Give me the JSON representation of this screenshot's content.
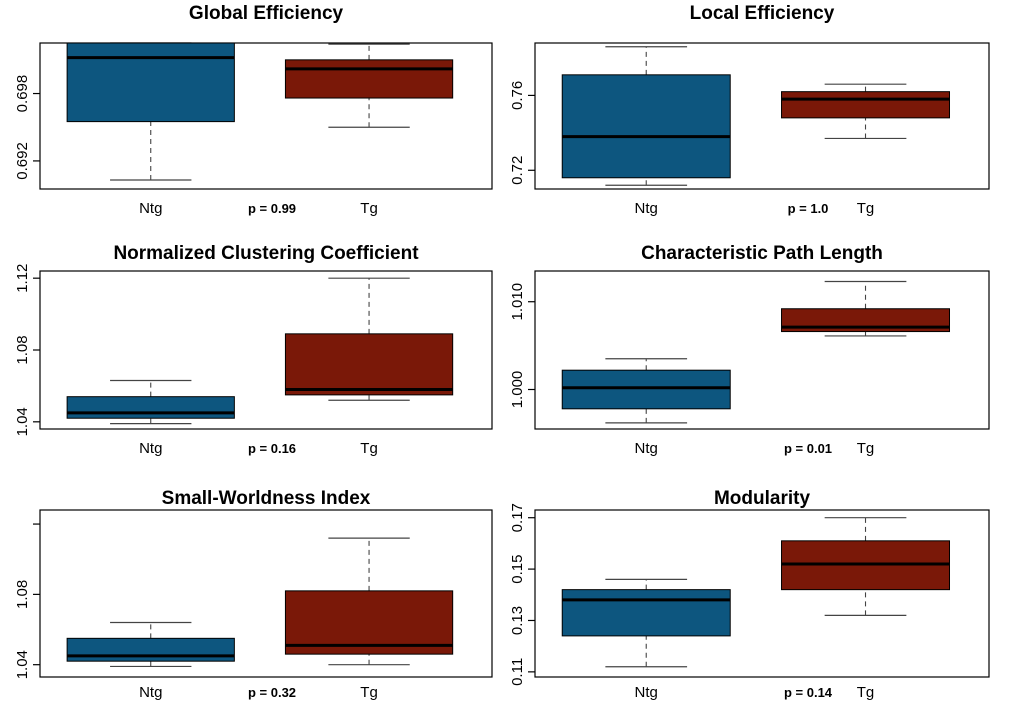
{
  "colors": {
    "ntg": "#0d567f",
    "tg": "#7a1808",
    "frame": "#000000",
    "whisker": "#444444"
  },
  "chart_data": [
    {
      "type": "box",
      "title": "Global Efficiency",
      "categories": [
        "Ntg",
        "Tg"
      ],
      "p_value": "p = 0.99",
      "ylim": [
        0.6895,
        0.7025
      ],
      "yticks": [
        0.692,
        0.698
      ],
      "ytick_labels": [
        "0.692",
        "0.698"
      ],
      "boxes": [
        {
          "name": "Ntg",
          "whisker_low": 0.6903,
          "q1": 0.6955,
          "median": 0.7012,
          "q3": 0.7025,
          "whisker_high": 0.7025
        },
        {
          "name": "Tg",
          "whisker_low": 0.695,
          "q1": 0.6976,
          "median": 0.7002,
          "q3": 0.701,
          "whisker_high": 0.7024
        }
      ]
    },
    {
      "type": "box",
      "title": "Local Efficiency",
      "categories": [
        "Ntg",
        "Tg"
      ],
      "p_value": "p = 1.0",
      "ylim": [
        0.71,
        0.788
      ],
      "yticks": [
        0.72,
        0.76
      ],
      "ytick_labels": [
        "0.72",
        "0.76"
      ],
      "boxes": [
        {
          "name": "Ntg",
          "whisker_low": 0.712,
          "q1": 0.716,
          "median": 0.738,
          "q3": 0.771,
          "whisker_high": 0.786
        },
        {
          "name": "Tg",
          "whisker_low": 0.737,
          "q1": 0.748,
          "median": 0.758,
          "q3": 0.762,
          "whisker_high": 0.766
        }
      ]
    },
    {
      "type": "box",
      "title": "Normalized Clustering Coefficient",
      "categories": [
        "Ntg",
        "Tg"
      ],
      "p_value": "p = 0.16",
      "ylim": [
        1.036,
        1.124
      ],
      "yticks": [
        1.04,
        1.08,
        1.12
      ],
      "ytick_labels": [
        "1.04",
        "1.08",
        "1.12"
      ],
      "boxes": [
        {
          "name": "Ntg",
          "whisker_low": 1.039,
          "q1": 1.042,
          "median": 1.045,
          "q3": 1.054,
          "whisker_high": 1.063
        },
        {
          "name": "Tg",
          "whisker_low": 1.052,
          "q1": 1.055,
          "median": 1.058,
          "q3": 1.089,
          "whisker_high": 1.12
        }
      ]
    },
    {
      "type": "box",
      "title": "Characteristic Path Length",
      "categories": [
        "Ntg",
        "Tg"
      ],
      "p_value": "p = 0.01",
      "ylim": [
        0.9955,
        1.0135
      ],
      "yticks": [
        1.0,
        1.01
      ],
      "ytick_labels": [
        "1.000",
        "1.010"
      ],
      "boxes": [
        {
          "name": "Ntg",
          "whisker_low": 0.9962,
          "q1": 0.9978,
          "median": 1.0002,
          "q3": 1.0022,
          "whisker_high": 1.0035
        },
        {
          "name": "Tg",
          "whisker_low": 1.0061,
          "q1": 1.0066,
          "median": 1.0071,
          "q3": 1.0092,
          "whisker_high": 1.0123
        }
      ]
    },
    {
      "type": "box",
      "title": "Small-Worldness Index",
      "categories": [
        "Ntg",
        "Tg"
      ],
      "p_value": "p = 0.32",
      "ylim": [
        1.033,
        1.128
      ],
      "yticks": [
        1.04,
        1.08,
        1.12
      ],
      "ytick_labels": [
        "1.04",
        "1.08",
        ""
      ],
      "boxes": [
        {
          "name": "Ntg",
          "whisker_low": 1.039,
          "q1": 1.042,
          "median": 1.045,
          "q3": 1.055,
          "whisker_high": 1.064
        },
        {
          "name": "Tg",
          "whisker_low": 1.04,
          "q1": 1.046,
          "median": 1.051,
          "q3": 1.082,
          "whisker_high": 1.112
        }
      ]
    },
    {
      "type": "box",
      "title": "Modularity",
      "categories": [
        "Ntg",
        "Tg"
      ],
      "p_value": "p = 0.14",
      "ylim": [
        0.108,
        0.173
      ],
      "yticks": [
        0.11,
        0.13,
        0.15,
        0.17
      ],
      "ytick_labels": [
        "0.11",
        "0.13",
        "0.15",
        "0.17"
      ],
      "boxes": [
        {
          "name": "Ntg",
          "whisker_low": 0.112,
          "q1": 0.124,
          "median": 0.138,
          "q3": 0.142,
          "whisker_high": 0.146
        },
        {
          "name": "Tg",
          "whisker_low": 0.132,
          "q1": 0.142,
          "median": 0.152,
          "q3": 0.161,
          "whisker_high": 0.17
        }
      ]
    }
  ]
}
